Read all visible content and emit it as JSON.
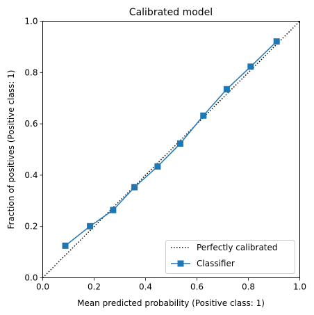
{
  "chart_data": {
    "type": "line",
    "title": "Calibrated model",
    "xlabel": "Mean predicted probability (Positive class: 1)",
    "ylabel": "Fraction of positives (Positive class: 1)",
    "xlim": [
      0,
      1
    ],
    "ylim": [
      0,
      1
    ],
    "xticks": [
      "0.0",
      "0.2",
      "0.4",
      "0.6",
      "0.8",
      "1.0"
    ],
    "yticks": [
      "0.0",
      "0.2",
      "0.4",
      "0.6",
      "0.8",
      "1.0"
    ],
    "grid": false,
    "legend_position": "lower-right",
    "series": [
      {
        "name": "Perfectly calibrated",
        "style": "dotted",
        "color": "#000000",
        "x": [
          0,
          1
        ],
        "y": [
          0,
          1
        ]
      },
      {
        "name": "Classifier",
        "style": "solid-square-markers",
        "color": "#1f77b4",
        "x": [
          0.088,
          0.184,
          0.274,
          0.357,
          0.447,
          0.535,
          0.625,
          0.716,
          0.809,
          0.91
        ],
        "y": [
          0.125,
          0.201,
          0.264,
          0.353,
          0.434,
          0.523,
          0.632,
          0.735,
          0.823,
          0.921
        ]
      }
    ]
  }
}
